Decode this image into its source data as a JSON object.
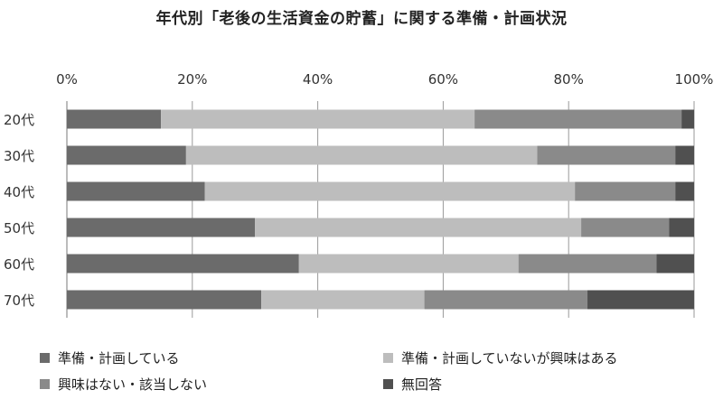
{
  "chart_data": {
    "type": "bar",
    "orientation": "horizontal",
    "stacked": "percent",
    "title": "年代別「老後の生活資金の貯蓄」に関する準備・計画状況",
    "categories": [
      "20代",
      "30代",
      "40代",
      "50代",
      "60代",
      "70代"
    ],
    "series": [
      {
        "name": "準備・計画している",
        "color": "#6b6b6b",
        "values": [
          15,
          19,
          22,
          30,
          37,
          31
        ]
      },
      {
        "name": "準備・計画していないが興味はある",
        "color": "#bdbdbd",
        "values": [
          50,
          56,
          59,
          52,
          35,
          26
        ]
      },
      {
        "name": "興味はない・該当しない",
        "color": "#8a8a8a",
        "values": [
          33,
          22,
          16,
          14,
          22,
          26
        ]
      },
      {
        "name": "無回答",
        "color": "#505050",
        "values": [
          2,
          3,
          3,
          4,
          6,
          17
        ]
      }
    ],
    "xaxis": {
      "ticks": [
        "0%",
        "20%",
        "40%",
        "60%",
        "80%",
        "100%"
      ],
      "position": "top"
    },
    "xlim": [
      0,
      100
    ],
    "grid": "vertical",
    "legend": "bottom"
  }
}
